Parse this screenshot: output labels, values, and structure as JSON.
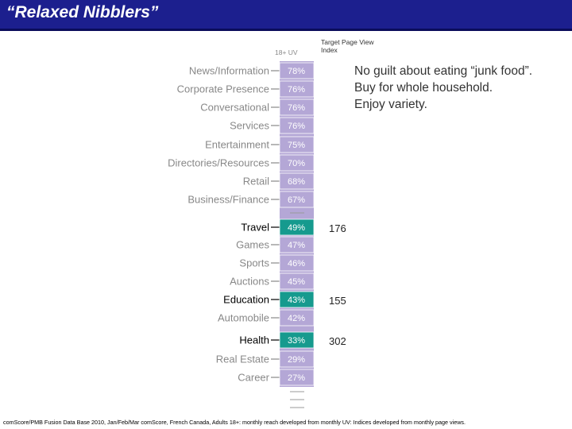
{
  "title": "“Relaxed Nibblers”",
  "header": {
    "uv_label": "18+ UV",
    "index_label": "Target Page View Index"
  },
  "tagline": "No guilt about eating “junk food”.\nBuy for whole household.\nEnjoy variety.",
  "footer": "comScore/PMB Fusion Data Base 2010, Jan/Feb/Mar comScore, French Canada, Adults 18+: monthly reach developed from monthly UV: Indices developed from monthly page views.",
  "colors": {
    "title_bar": "#1c1f8e",
    "bar_light": "#b4a7d6",
    "bar_highlight": "#169a8e"
  },
  "chart_data": {
    "type": "table",
    "categories": [
      "News/Information",
      "Corporate Presence",
      "Conversational",
      "Services",
      "Entertainment",
      "Directories/Resources",
      "Retail",
      "Business/Finance",
      "Travel",
      "Games",
      "Sports",
      "Auctions",
      "Education",
      "Automobile",
      "Health",
      "Real Estate",
      "Career"
    ],
    "series": [
      {
        "name": "18+ UV",
        "values": [
          78,
          76,
          76,
          76,
          75,
          70,
          68,
          67,
          49,
          47,
          46,
          45,
          43,
          42,
          33,
          29,
          27
        ],
        "labels": [
          "78%",
          "76%",
          "76%",
          "76%",
          "75%",
          "70%",
          "68%",
          "67%",
          "49%",
          "47%",
          "46%",
          "45%",
          "43%",
          "42%",
          "33%",
          "29%",
          "27%"
        ]
      },
      {
        "name": "Target Page View Index",
        "values": [
          null,
          null,
          null,
          null,
          null,
          null,
          null,
          null,
          176,
          null,
          null,
          null,
          155,
          null,
          302,
          null,
          null
        ],
        "labels": [
          "",
          "",
          "",
          "",
          "",
          "",
          "",
          "",
          "176",
          "",
          "",
          "",
          "155",
          "",
          "302",
          "",
          ""
        ]
      }
    ],
    "highlighted": [
      "Travel",
      "Education",
      "Health"
    ]
  }
}
